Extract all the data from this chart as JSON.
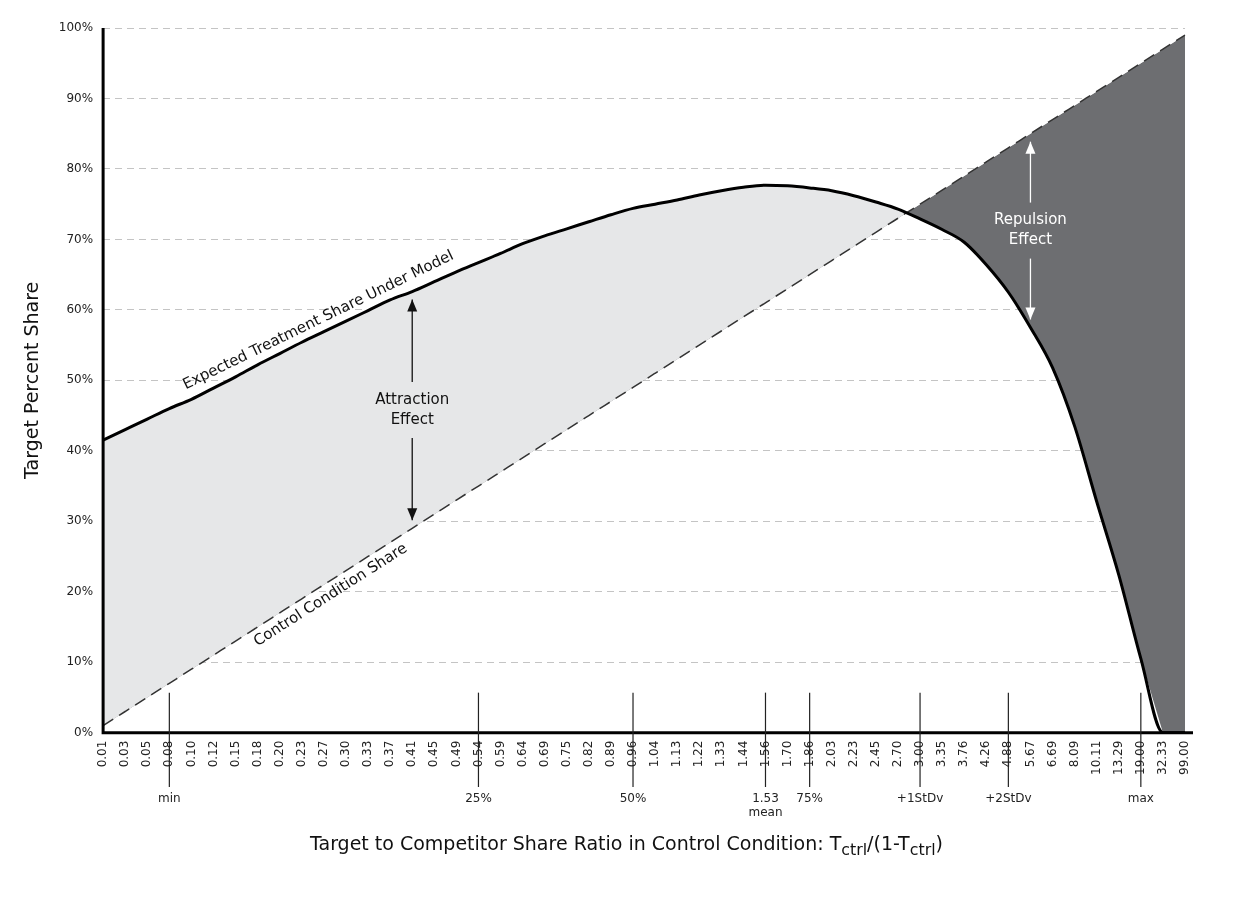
{
  "chart_data": {
    "type": "line",
    "xlabel": "Target to Competitor Share Ratio in Control Condition: T$_{ctrl}$/(1-T$_{ctrl}$)",
    "ylabel": "Target Percent Share",
    "categories": [
      "0.01",
      "0.03",
      "0.05",
      "0.08",
      "0.10",
      "0.12",
      "0.15",
      "0.18",
      "0.20",
      "0.23",
      "0.27",
      "0.30",
      "0.33",
      "0.37",
      "0.41",
      "0.45",
      "0.49",
      "0.54",
      "0.59",
      "0.64",
      "0.69",
      "0.75",
      "0.82",
      "0.89",
      "0.96",
      "1.04",
      "1.13",
      "1.22",
      "1.33",
      "1.44",
      "1.56",
      "1.70",
      "1.86",
      "2.03",
      "2.23",
      "2.45",
      "2.70",
      "3.00",
      "3.35",
      "3.76",
      "4.26",
      "4.88",
      "5.67",
      "6.69",
      "8.09",
      "10.11",
      "13.29",
      "19.00",
      "32.33",
      "99.00"
    ],
    "series": [
      {
        "name": "Expected Treatment Share Under Model",
        "color": "#000000",
        "line_style": "solid",
        "values": [
          41.5,
          43.0,
          44.5,
          46.0,
          47.3,
          48.9,
          50.5,
          52.2,
          53.8,
          55.4,
          56.9,
          58.4,
          59.9,
          61.4,
          62.6,
          64.0,
          65.4,
          66.7,
          68.0,
          69.4,
          70.5,
          71.5,
          72.5,
          73.5,
          74.4,
          75.0,
          75.6,
          76.3,
          76.9,
          77.4,
          77.7,
          77.6,
          77.3,
          76.9,
          76.2,
          75.3,
          74.3,
          72.9,
          71.4,
          69.6,
          66.4,
          62.5,
          57.5,
          51.8,
          43.5,
          32.8,
          22.4,
          10.5,
          0,
          0
        ],
        "lower": [
          1,
          3,
          5,
          7,
          9,
          11,
          13,
          15,
          17,
          19,
          21,
          23,
          25,
          27,
          29,
          31,
          33,
          35,
          37,
          39,
          41,
          43,
          45,
          47,
          49,
          51,
          53,
          55,
          57,
          59,
          61,
          63,
          65,
          67,
          69,
          71,
          73,
          75,
          77,
          79,
          81,
          83,
          85,
          87,
          89,
          91,
          93,
          95,
          97,
          99
        ],
        "upper": [
          41.5,
          43.0,
          44.5,
          46.0,
          47.3,
          48.9,
          50.5,
          52.2,
          53.8,
          55.4,
          56.9,
          58.4,
          59.9,
          61.4,
          62.6,
          64.0,
          65.4,
          66.7,
          68.0,
          69.4,
          70.5,
          71.5,
          72.5,
          73.5,
          74.4,
          75.0,
          75.6,
          76.3,
          76.9,
          77.4,
          77.7,
          77.6,
          77.3,
          76.9,
          76.2,
          75.3,
          74.3,
          72.9,
          71.4,
          69.6,
          66.4,
          62.5,
          57.5,
          51.8,
          43.5,
          32.8,
          22.4,
          10.5,
          0,
          0
        ]
      },
      {
        "name": "Control Condition Share",
        "color": "#333333",
        "line_style": "dashed",
        "values": [
          1,
          3,
          5,
          7,
          9,
          11,
          13,
          15,
          17,
          19,
          21,
          23,
          25,
          27,
          29,
          31,
          33,
          35,
          37,
          39,
          41,
          43,
          45,
          47,
          49,
          51,
          53,
          55,
          57,
          59,
          61,
          63,
          65,
          67,
          69,
          71,
          73,
          75,
          77,
          79,
          81,
          83,
          85,
          87,
          89,
          91,
          93,
          95,
          97,
          99
        ]
      }
    ],
    "ylim": [
      0,
      100
    ],
    "yticks": [
      {
        "value": 0,
        "label": "0%"
      },
      {
        "value": 10,
        "label": "10%"
      },
      {
        "value": 20,
        "label": "20%"
      },
      {
        "value": 30,
        "label": "30%"
      },
      {
        "value": 40,
        "label": "40%"
      },
      {
        "value": 50,
        "label": "50%"
      },
      {
        "value": 60,
        "label": "60%"
      },
      {
        "value": 70,
        "label": "70%"
      },
      {
        "value": 80,
        "label": "80%"
      },
      {
        "value": 90,
        "label": "90%"
      },
      {
        "value": 100,
        "label": "100%"
      }
    ],
    "ref_lines": [
      {
        "axis": "x",
        "value": "0.08",
        "label": "min"
      },
      {
        "axis": "x",
        "value": "0.54",
        "label": "25%"
      },
      {
        "axis": "x",
        "value": "0.96",
        "label": "50%"
      },
      {
        "axis": "x",
        "value": "1.56",
        "label": "1.53 mean"
      },
      {
        "axis": "x",
        "value": "1.86",
        "label": "75%"
      },
      {
        "axis": "x",
        "value": "3.00",
        "label": "+1StDv"
      },
      {
        "axis": "x",
        "value": "4.88",
        "label": "+2StDv"
      },
      {
        "axis": "x",
        "value": "19.00",
        "label": "max"
      }
    ],
    "annotations": [
      {
        "text": "Attraction Effect",
        "x": "0.41",
        "y": 62.6
      },
      {
        "text": "Repulsion Effect",
        "x": "5.67",
        "y": 57.5
      }
    ],
    "grid": "y",
    "legend": false,
    "marker": "none"
  }
}
